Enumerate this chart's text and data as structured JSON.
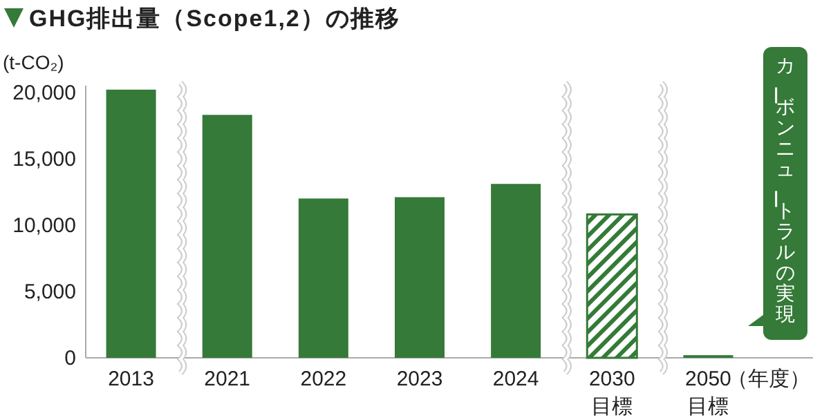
{
  "chart_data": {
    "type": "bar",
    "title": "GHG排出量（Scope1,2）の推移",
    "ylabel": "(t-CO₂)",
    "xlabel": "（年度）",
    "categories": [
      "2013",
      "2021",
      "2022",
      "2023",
      "2024",
      "2030\n目標",
      "2050\n目標"
    ],
    "series": [
      {
        "color": "#357a38",
        "values": [
          20200,
          18300,
          12000,
          12100,
          13100,
          null,
          200
        ]
      },
      {
        "color": "#357a38",
        "values": [
          null,
          null,
          null,
          null,
          null,
          10800,
          null
        ]
      }
    ],
    "ylim": [
      0,
      20500
    ],
    "yticks": [
      0,
      {
        "value": 5000,
        "label": "5,000"
      },
      {
        "value": 10000,
        "label": "10,000"
      },
      {
        "value": 15000,
        "label": "15,000"
      },
      {
        "value": 20000,
        "label": "20,000"
      }
    ],
    "grid": false,
    "annotations": [
      "カーボンニュートラルの実現"
    ]
  }
}
